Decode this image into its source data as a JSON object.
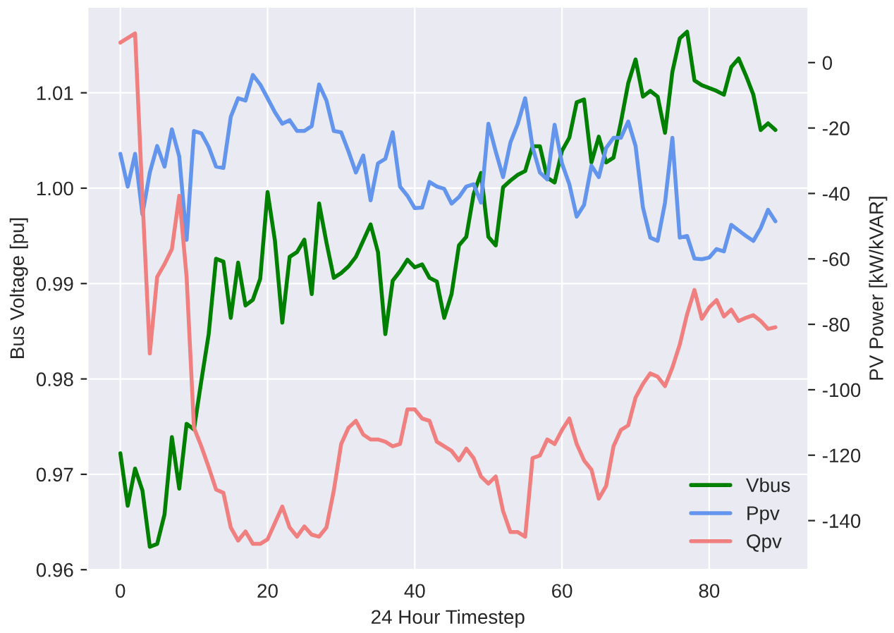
{
  "chart_data": {
    "type": "line",
    "xlabel": "24 Hour Timestep",
    "ylabel": "Bus Voltage [pu]",
    "y2label": "PV Power [kW/kVAR]",
    "x": [
      0,
      1,
      2,
      3,
      4,
      5,
      6,
      7,
      8,
      9,
      10,
      11,
      12,
      13,
      14,
      15,
      16,
      17,
      18,
      19,
      20,
      21,
      22,
      23,
      24,
      25,
      26,
      27,
      28,
      29,
      30,
      31,
      32,
      33,
      34,
      35,
      36,
      37,
      38,
      39,
      40,
      41,
      42,
      43,
      44,
      45,
      46,
      47,
      48,
      49,
      50,
      51,
      52,
      53,
      54,
      55,
      56,
      57,
      58,
      59,
      60,
      61,
      62,
      63,
      64,
      65,
      66,
      67,
      68,
      69,
      70,
      71,
      72,
      73,
      74,
      75,
      76,
      77,
      78,
      79,
      80,
      81,
      82,
      83,
      84,
      85,
      86,
      87,
      88,
      89
    ],
    "series": [
      {
        "name": "Vbus",
        "color": "#008000",
        "axis": "y",
        "values": [
          0.9722,
          0.9667,
          0.9706,
          0.9683,
          0.9624,
          0.9627,
          0.9658,
          0.9739,
          0.9685,
          0.9753,
          0.9747,
          0.9798,
          0.9847,
          0.9926,
          0.9923,
          0.9864,
          0.9922,
          0.9877,
          0.9883,
          0.9905,
          0.9996,
          0.9945,
          0.9859,
          0.9928,
          0.9933,
          0.9946,
          0.9889,
          0.9984,
          0.9943,
          0.9906,
          0.9911,
          0.9918,
          0.9928,
          0.9945,
          0.9962,
          0.9933,
          0.9847,
          0.9903,
          0.9913,
          0.9925,
          0.9917,
          0.992,
          0.9906,
          0.9902,
          0.9864,
          0.9889,
          0.994,
          0.9949,
          0.9994,
          1.0016,
          0.9949,
          0.994,
          1.0001,
          1.0008,
          1.0014,
          1.0018,
          1.0044,
          1.0044,
          1.0011,
          1.0006,
          1.0039,
          1.0053,
          1.009,
          1.0093,
          1.0027,
          1.0054,
          1.0027,
          1.0032,
          1.0069,
          1.011,
          1.0135,
          1.0096,
          1.0102,
          1.0096,
          1.0058,
          1.0122,
          1.0157,
          1.0164,
          1.0113,
          1.0108,
          1.0105,
          1.0102,
          1.0098,
          1.0127,
          1.0136,
          1.0118,
          1.0098,
          1.0061,
          1.0068,
          1.0061
        ]
      },
      {
        "name": "Ppv",
        "color": "#6495ed",
        "axis": "y2",
        "values": [
          -27.9,
          -37.9,
          -27.9,
          -46.4,
          -33.6,
          -25.5,
          -31.8,
          -20.4,
          -28.7,
          -54.2,
          -20.9,
          -21.6,
          -25.8,
          -31.8,
          -32.2,
          -16.6,
          -10.9,
          -11.6,
          -3.8,
          -6.7,
          -10.9,
          -15.2,
          -18.7,
          -17.6,
          -20.9,
          -20.9,
          -19.4,
          -6.7,
          -11.6,
          -20.9,
          -21.3,
          -27.2,
          -33.6,
          -28.4,
          -42.1,
          -30.8,
          -29.4,
          -21.3,
          -37.9,
          -40.7,
          -44.5,
          -44.3,
          -36.5,
          -37.9,
          -38.6,
          -43.1,
          -41.1,
          -37.9,
          -37.2,
          -42.8,
          -18.7,
          -27.2,
          -35.0,
          -24.4,
          -18.7,
          -10.9,
          -25.8,
          -33.6,
          -35.7,
          -19.0,
          -30.8,
          -37.2,
          -47.1,
          -43.5,
          -31.5,
          -35.0,
          -26.1,
          -23.0,
          -23.0,
          -18.0,
          -25.5,
          -44.3,
          -53.5,
          -54.5,
          -42.8,
          -23.0,
          -53.5,
          -53.0,
          -59.9,
          -60.1,
          -59.6,
          -57.0,
          -57.7,
          -49.6,
          -51.3,
          -53.0,
          -54.5,
          -50.6,
          -45.0,
          -48.5
        ]
      },
      {
        "name": "Qpv",
        "color": "#f08080",
        "axis": "y2",
        "values": [
          6.1,
          7.5,
          8.9,
          -41.4,
          -88.9,
          -65.5,
          -61.6,
          -57.0,
          -40.7,
          -65.5,
          -111.6,
          -117.3,
          -123.7,
          -130.5,
          -131.5,
          -142.1,
          -146.1,
          -143.3,
          -147.1,
          -147.1,
          -145.7,
          -140.7,
          -135.7,
          -142.1,
          -144.9,
          -141.8,
          -144.3,
          -144.9,
          -142.1,
          -130.8,
          -116.6,
          -111.6,
          -109.5,
          -113.7,
          -115.2,
          -115.2,
          -115.9,
          -117.3,
          -116.6,
          -106.0,
          -106.0,
          -108.8,
          -109.5,
          -115.9,
          -117.3,
          -118.7,
          -121.6,
          -118.0,
          -120.9,
          -126.5,
          -128.7,
          -126.5,
          -137.1,
          -143.5,
          -143.5,
          -144.9,
          -120.9,
          -120.1,
          -115.2,
          -116.6,
          -112.3,
          -108.8,
          -116.6,
          -121.6,
          -124.4,
          -133.3,
          -129.4,
          -117.3,
          -112.3,
          -110.9,
          -102.4,
          -98.2,
          -95.0,
          -96.0,
          -98.9,
          -93.2,
          -86.2,
          -76.9,
          -69.5,
          -78.3,
          -74.8,
          -72.6,
          -77.6,
          -75.5,
          -79.0,
          -78.0,
          -77.2,
          -79.0,
          -81.4,
          -80.9
        ]
      }
    ],
    "xlim": [
      -4.45,
      93.45
    ],
    "xticks": [
      0,
      20,
      40,
      60,
      80
    ],
    "ylim": [
      0.96,
      1.019
    ],
    "yticks": [
      0.96,
      0.97,
      0.98,
      0.99,
      {
        "value": 1.0,
        "label": "1.00"
      },
      1.01
    ],
    "y2lim": [
      -155,
      17
    ],
    "y2ticks": [
      0,
      -20,
      -40,
      -60,
      -80,
      -100,
      -120,
      -140
    ],
    "grid": true,
    "legend": "bottom right",
    "marker": "none",
    "line_style": "solid"
  }
}
